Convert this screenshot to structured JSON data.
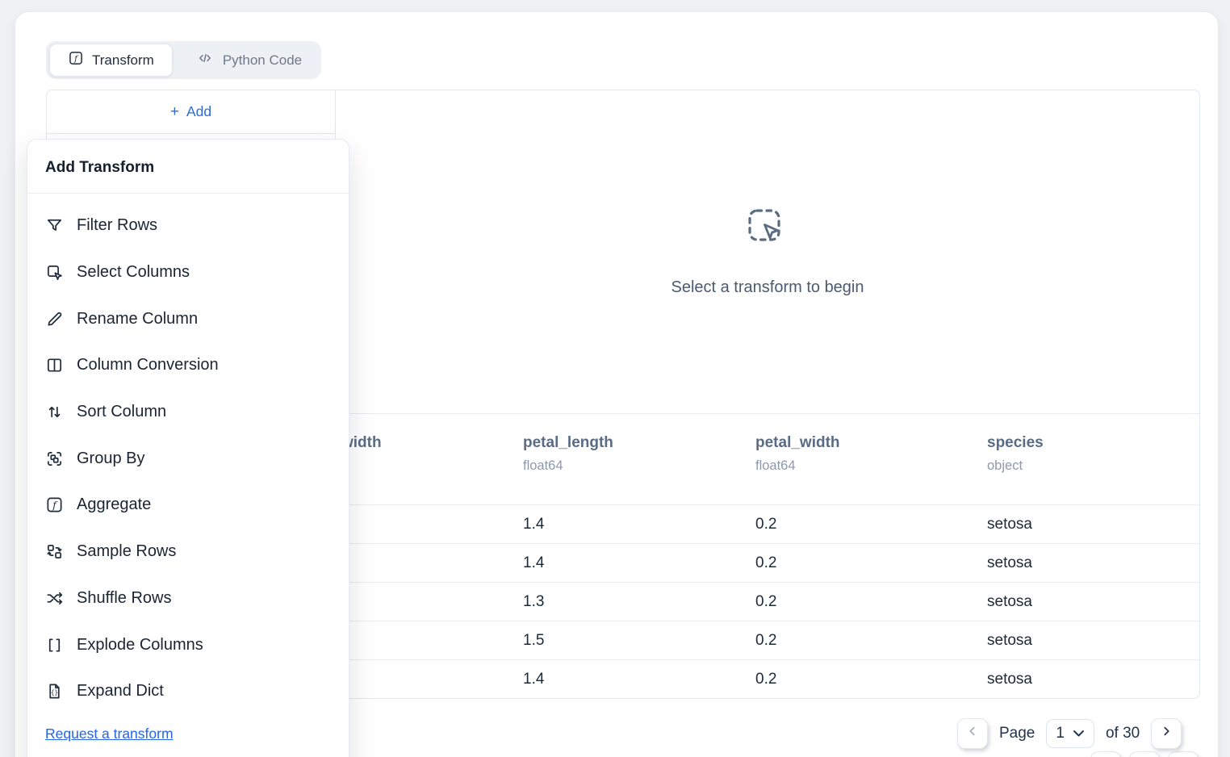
{
  "tabs": [
    {
      "label": "Transform",
      "icon": "function-icon",
      "active": true
    },
    {
      "label": "Python Code",
      "icon": "code-icon",
      "active": false
    }
  ],
  "add_button": {
    "plus": "+",
    "label": "Add"
  },
  "dropdown": {
    "title": "Add Transform",
    "items": [
      {
        "label": "Filter Rows",
        "icon": "filter-icon"
      },
      {
        "label": "Select Columns",
        "icon": "select-columns-icon"
      },
      {
        "label": "Rename Column",
        "icon": "pencil-icon"
      },
      {
        "label": "Column Conversion",
        "icon": "columns-icon"
      },
      {
        "label": "Sort Column",
        "icon": "sort-arrows-icon"
      },
      {
        "label": "Group By",
        "icon": "group-icon"
      },
      {
        "label": "Aggregate",
        "icon": "function-icon"
      },
      {
        "label": "Sample Rows",
        "icon": "sample-icon"
      },
      {
        "label": "Shuffle Rows",
        "icon": "shuffle-icon"
      },
      {
        "label": "Explode Columns",
        "icon": "brackets-icon"
      },
      {
        "label": "Expand Dict",
        "icon": "expand-dict-icon"
      }
    ],
    "footer_link": "Request a transform"
  },
  "empty_state": {
    "message": "Select a transform to begin",
    "icon": "select-cursor-icon"
  },
  "table": {
    "columns": [
      {
        "label": "width",
        "dtype": ""
      },
      {
        "label": "petal_length",
        "dtype": "float64"
      },
      {
        "label": "petal_width",
        "dtype": "float64"
      },
      {
        "label": "species",
        "dtype": "object"
      }
    ],
    "rows": [
      [
        "",
        "1.4",
        "0.2",
        "setosa"
      ],
      [
        "",
        "1.4",
        "0.2",
        "setosa"
      ],
      [
        "",
        "1.3",
        "0.2",
        "setosa"
      ],
      [
        "",
        "1.5",
        "0.2",
        "setosa"
      ],
      [
        "",
        "1.4",
        "0.2",
        "setosa"
      ]
    ]
  },
  "pagination": {
    "label": "Page",
    "current": "1",
    "of_label": "of",
    "total": "30"
  },
  "colors": {
    "accent_blue": "#2e6bdb",
    "link_blue": "#2563eb",
    "table_header": "#5a6c85",
    "text_dark": "#1c2938",
    "muted_gray": "#8e99ab"
  }
}
